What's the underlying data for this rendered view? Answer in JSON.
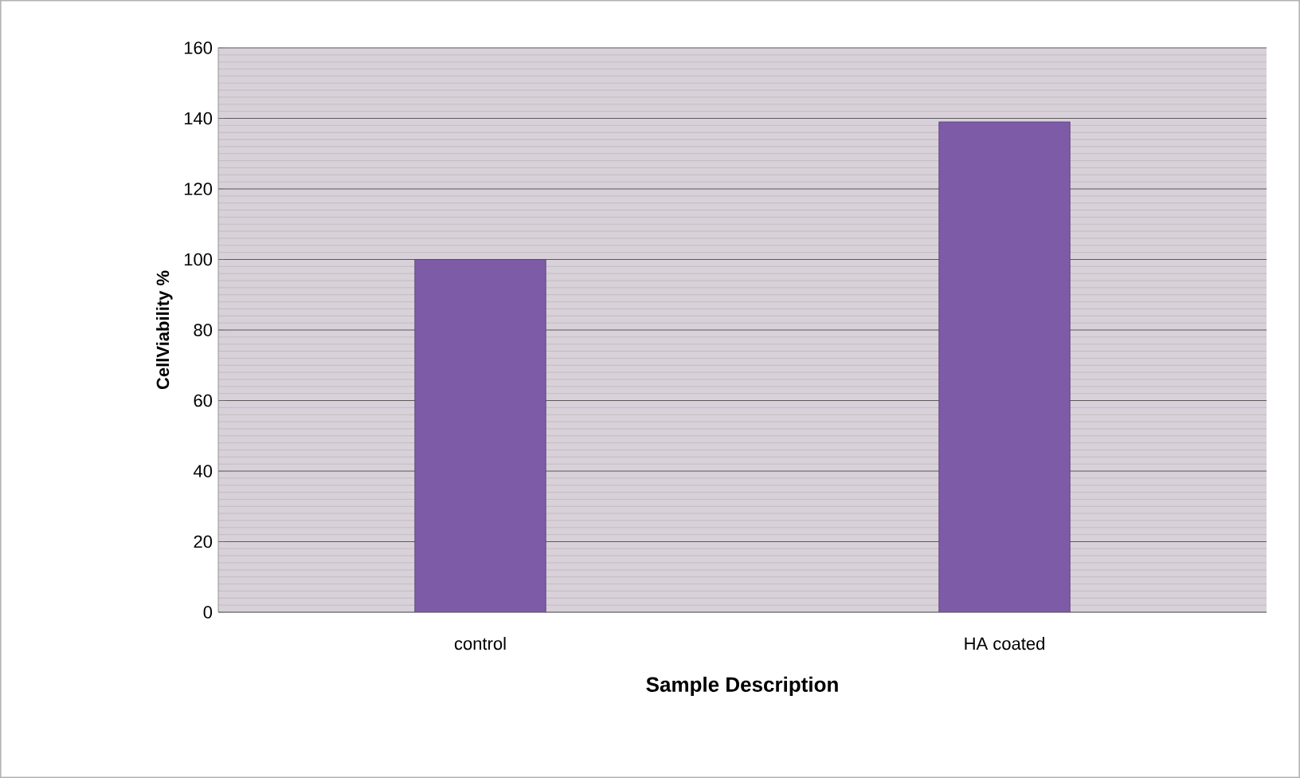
{
  "chart_data": {
    "type": "bar",
    "xlabel": "Sample Description",
    "ylabel": "CellViability %",
    "categories": [
      "control",
      "HA coated"
    ],
    "values": [
      100,
      139
    ],
    "color": "#7d5ba6",
    "ylim": [
      0,
      160
    ],
    "yticks": [
      0,
      20,
      40,
      60,
      80,
      100,
      120,
      140,
      160
    ],
    "grid": "y"
  }
}
